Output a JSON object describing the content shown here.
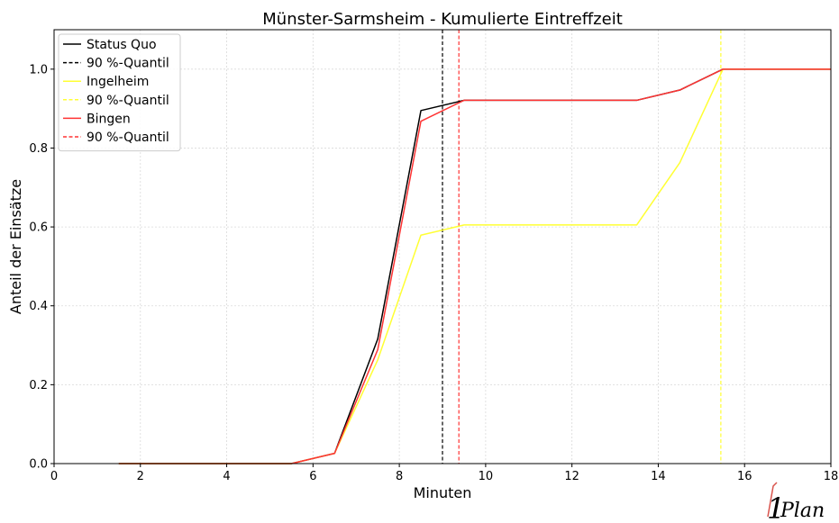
{
  "chart_data": {
    "type": "line",
    "title": "Münster-Sarmsheim - Kumulierte Eintreffzeit",
    "xlabel": "Minuten",
    "ylabel": "Anteil der Einsätze",
    "xlim": [
      0,
      18
    ],
    "ylim": [
      0,
      1.1
    ],
    "x_ticks": [
      0,
      2,
      4,
      6,
      8,
      10,
      12,
      14,
      16,
      18
    ],
    "x_tick_labels": [
      "0",
      "2",
      "4",
      "6",
      "8",
      "10",
      "12",
      "14",
      "16",
      "18"
    ],
    "y_ticks": [
      0,
      0.2,
      0.4,
      0.6,
      0.8,
      1.0
    ],
    "y_tick_labels": [
      "0.0",
      "0.2",
      "0.4",
      "0.6",
      "0.8",
      "1.0"
    ],
    "grid": true,
    "legend_position": "top-left",
    "series": [
      {
        "name": "Status Quo",
        "color": "#000000",
        "style": "solid",
        "x": [
          1.5,
          5.5,
          6.5,
          7.5,
          8.5,
          9.5,
          13.5,
          14.5,
          15.5,
          18
        ],
        "y": [
          0,
          0,
          0.026,
          0.316,
          0.895,
          0.921,
          0.921,
          0.947,
          1.0,
          1.0
        ]
      },
      {
        "name": "Ingelheim",
        "color": "#ffff33",
        "style": "solid",
        "x": [
          1.5,
          5.5,
          6.5,
          7.5,
          8.5,
          9.5,
          13.5,
          14.5,
          15.5,
          18
        ],
        "y": [
          0,
          0,
          0.026,
          0.263,
          0.579,
          0.605,
          0.605,
          0.763,
          1.0,
          1.0
        ]
      },
      {
        "name": "Bingen",
        "color": "#ff3333",
        "style": "solid",
        "x": [
          1.5,
          5.5,
          6.5,
          7.5,
          8.5,
          9.5,
          13.5,
          14.5,
          15.5,
          18
        ],
        "y": [
          0,
          0,
          0.026,
          0.289,
          0.868,
          0.921,
          0.921,
          0.947,
          1.0,
          1.0
        ]
      }
    ],
    "quantile_lines": [
      {
        "name": "90 %-Quantil",
        "x": 9.0,
        "color": "#000000",
        "style": "dashed"
      },
      {
        "name": "90 %-Quantil",
        "x": 15.45,
        "color": "#ffff33",
        "style": "dashed"
      },
      {
        "name": "90 %-Quantil",
        "x": 9.38,
        "color": "#ff3333",
        "style": "dashed"
      }
    ],
    "legend": [
      {
        "label": "Status Quo",
        "color": "#000000",
        "style": "solid"
      },
      {
        "label": "90 %-Quantil",
        "color": "#000000",
        "style": "dashed"
      },
      {
        "label": "Ingelheim",
        "color": "#ffff33",
        "style": "solid"
      },
      {
        "label": "90 %-Quantil",
        "color": "#ffff33",
        "style": "dashed"
      },
      {
        "label": "Bingen",
        "color": "#ff3333",
        "style": "solid"
      },
      {
        "label": "90 %-Quantil",
        "color": "#ff3333",
        "style": "dashed"
      }
    ]
  },
  "logo": {
    "digit": "1",
    "word": "Plan",
    "digit_color": "#d9544d",
    "word_color": "#5a8fa8"
  }
}
